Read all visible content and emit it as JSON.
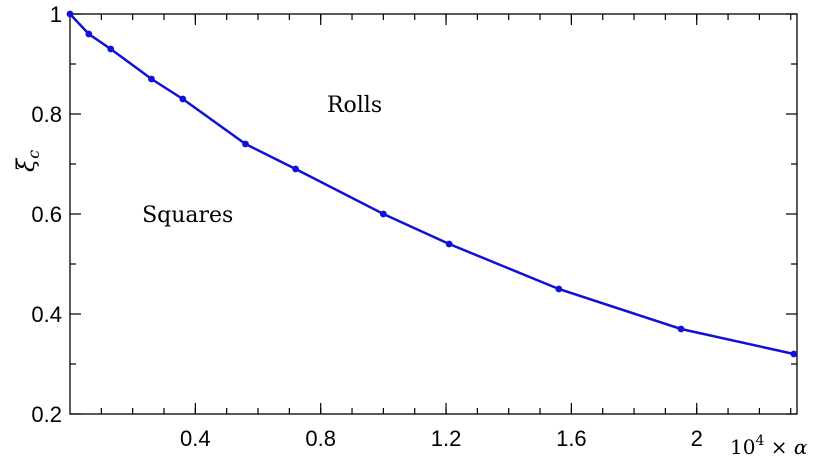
{
  "chart_data": {
    "type": "line",
    "title": "",
    "xlabel_base": "10",
    "xlabel_exp": "4",
    "xlabel_suffix": " × α",
    "ylabel_main": "ξ",
    "ylabel_sub": "c",
    "xlim": [
      0,
      2.32
    ],
    "ylim": [
      0.2,
      1.0
    ],
    "xticks": [
      0.4,
      0.8,
      1.2,
      1.6,
      2.0
    ],
    "xtick_labels": [
      "0.4",
      "0.8",
      "1.2",
      "1.6",
      "2"
    ],
    "yticks": [
      0.2,
      0.4,
      0.6,
      0.8,
      1.0
    ],
    "ytick_labels": [
      "0.2",
      "0.4",
      "0.6",
      "0.8",
      "1"
    ],
    "annotations": [
      {
        "id": "rolls",
        "text": "Rolls",
        "x": 0.82,
        "y": 0.82
      },
      {
        "id": "squares",
        "text": "Squares",
        "x": 0.23,
        "y": 0.6
      }
    ],
    "grid": false,
    "series": [
      {
        "color": "#1010d8",
        "x": [
          0.0,
          0.06,
          0.13,
          0.26,
          0.36,
          0.56,
          0.72,
          1.0,
          1.21,
          1.56,
          1.95,
          2.31
        ],
        "y": [
          1.0,
          0.96,
          0.93,
          0.87,
          0.83,
          0.74,
          0.69,
          0.6,
          0.54,
          0.45,
          0.37,
          0.32
        ]
      }
    ]
  }
}
